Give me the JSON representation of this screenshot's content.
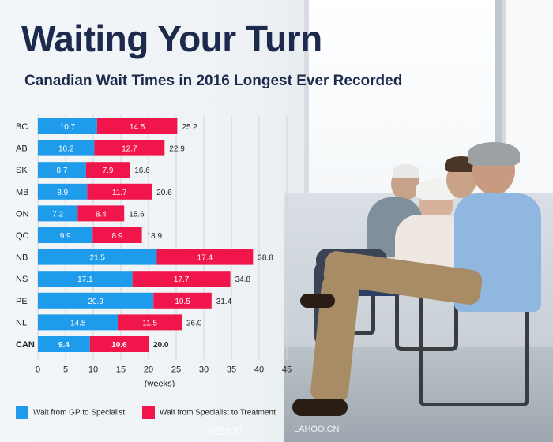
{
  "title": "Waiting Your Turn",
  "subtitle": "Canadian Wait Times in 2016 Longest Ever Recorded",
  "colors": {
    "gp": "#1e9bea",
    "specialist": "#f0154a",
    "title": "#1d2a4d"
  },
  "legend": {
    "gp": "Wait from GP to Specialist",
    "specialist": "Wait from Specialist to Treatment"
  },
  "watermark": {
    "left": "闻堂大观",
    "right": "LAHOO.CN"
  },
  "chart_data": {
    "type": "bar",
    "orientation": "horizontal",
    "stacked": true,
    "categories": [
      "BC",
      "AB",
      "SK",
      "MB",
      "ON",
      "QC",
      "NB",
      "NS",
      "PE",
      "NL",
      "CAN"
    ],
    "series": [
      {
        "name": "Wait from GP to Specialist",
        "values": [
          10.7,
          10.2,
          8.7,
          8.9,
          7.2,
          9.9,
          21.5,
          17.1,
          20.9,
          14.5,
          9.4
        ],
        "labels": [
          "10.7",
          "10.2",
          "8.7",
          "8.9",
          "7.2",
          "9.9",
          "21.5",
          "17.1",
          "20.9",
          "14.5",
          "9.4"
        ]
      },
      {
        "name": "Wait from Specialist to Treatment",
        "values": [
          14.5,
          12.7,
          7.9,
          11.7,
          8.4,
          8.9,
          17.4,
          17.7,
          10.5,
          11.5,
          10.6
        ],
        "labels": [
          "14.5",
          "12.7",
          "7.9",
          "11.7",
          "8.4",
          "8.9",
          "17.4",
          "17.7",
          "10.5",
          "11.5",
          "10.6"
        ]
      }
    ],
    "totals": [
      "25.2",
      "22.9",
      "16.6",
      "20.6",
      "15.6",
      "18.9",
      "38.8",
      "34.8",
      "31.4",
      "26.0",
      "20.0"
    ],
    "bold_category": "CAN",
    "xlabel": "(weeks)",
    "xlim": [
      0,
      45
    ],
    "xticks": [
      "0",
      "5",
      "10",
      "15",
      "20",
      "25",
      "30",
      "35",
      "40",
      "45"
    ],
    "grid": true,
    "legend_position": "bottom"
  }
}
